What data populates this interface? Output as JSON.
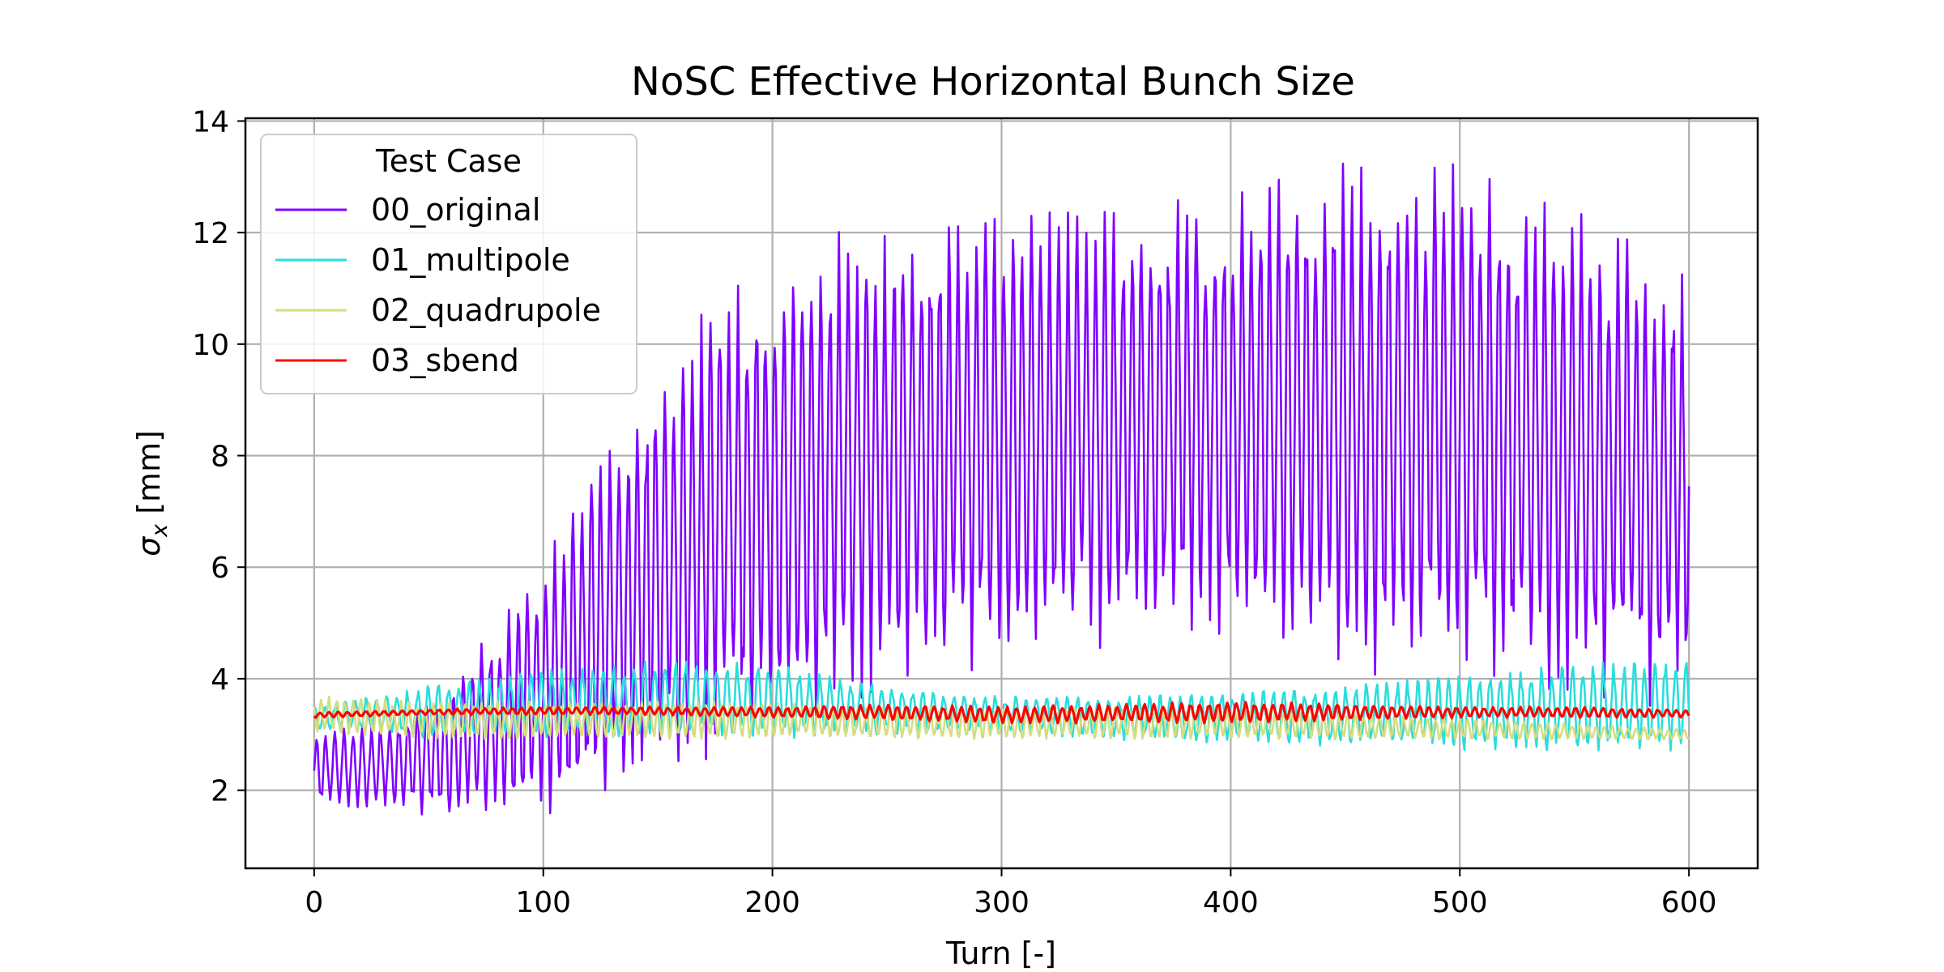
{
  "chart_data": {
    "type": "line",
    "title": "NoSC Effective Horizontal Bunch Size",
    "xlabel": "Turn [-]",
    "ylabel_symbol": "σ",
    "ylabel_subscript": "x",
    "ylabel_unit": " [mm]",
    "xlim": [
      -30,
      630
    ],
    "ylim": [
      0.6,
      14.05
    ],
    "x_ticks": [
      0,
      100,
      200,
      300,
      400,
      500,
      600
    ],
    "y_ticks": [
      2,
      4,
      6,
      8,
      10,
      12,
      14
    ],
    "grid": true,
    "legend": {
      "title": "Test Case",
      "placement": "top-left"
    },
    "series": [
      {
        "name": "00_original",
        "color": "#8000ff",
        "oscillation_period_turns": 4,
        "envelope": {
          "x": [
            0,
            10,
            20,
            40,
            60,
            80,
            100,
            120,
            140,
            160,
            180,
            200,
            220,
            240,
            260,
            280,
            300,
            320,
            340,
            360,
            380,
            400,
            420,
            440,
            460,
            480,
            500,
            520,
            540,
            560,
            580,
            600
          ],
          "upper": [
            3.0,
            3.1,
            3.2,
            3.4,
            4.0,
            5.0,
            6.2,
            7.8,
            9.0,
            10.0,
            11.2,
            11.8,
            12.0,
            12.2,
            12.3,
            12.3,
            12.4,
            12.5,
            12.5,
            12.6,
            12.8,
            13.0,
            13.1,
            13.2,
            13.3,
            13.3,
            13.4,
            13.0,
            12.6,
            12.3,
            11.8,
            11.4
          ],
          "lower": [
            1.7,
            1.7,
            1.6,
            1.6,
            1.5,
            1.5,
            1.5,
            1.6,
            1.8,
            2.2,
            2.6,
            2.9,
            3.2,
            3.6,
            3.9,
            4.0,
            4.1,
            4.3,
            4.5,
            4.5,
            4.6,
            4.5,
            4.3,
            4.2,
            4.0,
            4.0,
            4.0,
            3.8,
            3.6,
            3.5,
            3.4,
            3.5
          ]
        }
      },
      {
        "name": "01_multipole",
        "color": "#2adddd",
        "oscillation_period_turns": 4.5,
        "envelope": {
          "x": [
            0,
            50,
            100,
            150,
            200,
            250,
            300,
            350,
            400,
            450,
            500,
            550,
            600
          ],
          "upper": [
            3.5,
            3.9,
            4.2,
            4.4,
            4.3,
            3.9,
            3.7,
            3.7,
            3.8,
            3.9,
            4.1,
            4.3,
            4.4
          ],
          "lower": [
            3.1,
            2.9,
            2.9,
            2.9,
            2.9,
            3.0,
            3.0,
            2.9,
            2.8,
            2.8,
            2.7,
            2.7,
            2.7
          ]
        }
      },
      {
        "name": "02_quadrupole",
        "color": "#d4dd80",
        "oscillation_period_turns": 3.5,
        "envelope": {
          "x": [
            0,
            50,
            100,
            150,
            200,
            250,
            300,
            350,
            400,
            450,
            500,
            550,
            600
          ],
          "upper": [
            3.7,
            3.6,
            3.6,
            3.6,
            3.6,
            3.5,
            3.5,
            3.5,
            3.5,
            3.4,
            3.3,
            3.2,
            3.1
          ],
          "lower": [
            3.0,
            2.9,
            2.9,
            2.9,
            2.9,
            2.9,
            2.9,
            2.9,
            2.9,
            2.9,
            2.9,
            2.9,
            2.9
          ]
        }
      },
      {
        "name": "03_sbend",
        "color": "#ff0000",
        "oscillation_period_turns": 4,
        "envelope": {
          "x": [
            0,
            50,
            100,
            150,
            200,
            250,
            300,
            350,
            400,
            450,
            500,
            550,
            600
          ],
          "upper": [
            3.4,
            3.45,
            3.5,
            3.5,
            3.5,
            3.55,
            3.5,
            3.55,
            3.6,
            3.55,
            3.5,
            3.5,
            3.45
          ],
          "lower": [
            3.3,
            3.35,
            3.35,
            3.35,
            3.3,
            3.25,
            3.2,
            3.2,
            3.2,
            3.25,
            3.3,
            3.3,
            3.3
          ]
        }
      }
    ]
  }
}
